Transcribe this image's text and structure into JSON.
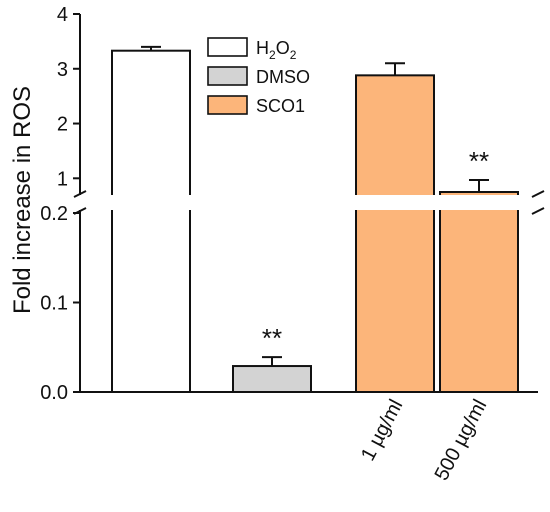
{
  "chart_data": {
    "type": "bar",
    "title": "",
    "xlabel": "",
    "ylabel": "Fold increase in ROS",
    "y_axis_break": {
      "lower_range": [
        0,
        0.2
      ],
      "upper_range": [
        0.75,
        4
      ]
    },
    "lower_ticks": [
      "0.0",
      "0.1",
      "0.2"
    ],
    "upper_ticks": [
      "1",
      "2",
      "3",
      "4"
    ],
    "x_tick_labels": [
      "",
      "",
      "1 µg/ml",
      "500 µg/ml"
    ],
    "bars": [
      {
        "group": "H2O2",
        "value": 3.33,
        "error": 0.07,
        "significance": ""
      },
      {
        "group": "DMSO",
        "value": 0.029,
        "error": 0.01,
        "significance": "**"
      },
      {
        "group": "SCO1",
        "value": 2.88,
        "error": 0.22,
        "significance": ""
      },
      {
        "group": "SCO1",
        "value": 0.75,
        "error": 0.22,
        "significance": "**"
      }
    ],
    "legend": {
      "position": "top-center",
      "entries": [
        {
          "label_main": "H",
          "label_sub1": "2",
          "label_mid": "O",
          "label_sub2": "2",
          "color": "#ffffff"
        },
        {
          "label_main": "DMSO",
          "label_sub1": "",
          "label_mid": "",
          "label_sub2": "",
          "color": "#d3d3d3"
        },
        {
          "label_main": "SCO1",
          "label_sub1": "",
          "label_mid": "",
          "label_sub2": "",
          "color": "#fcb57a"
        }
      ]
    },
    "colors": {
      "H2O2": "#ffffff",
      "DMSO": "#d3d3d3",
      "SCO1": "#fcb57a",
      "stroke": "#111111"
    }
  }
}
